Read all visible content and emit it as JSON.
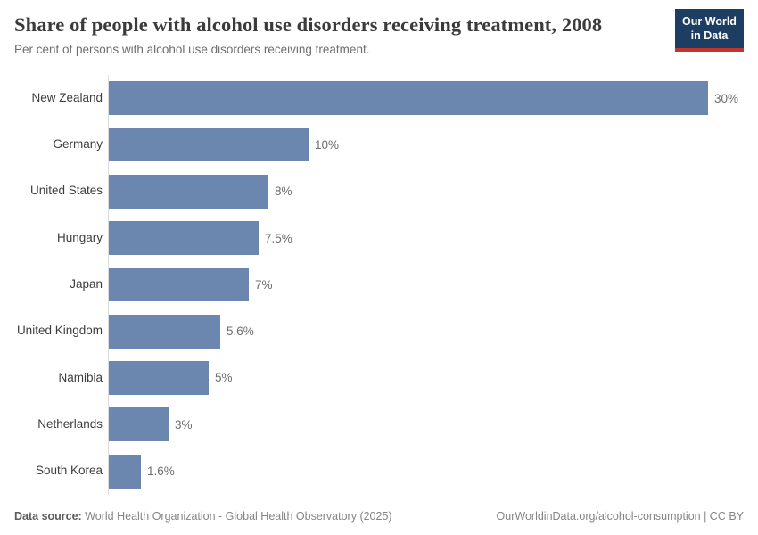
{
  "header": {
    "title": "Share of people with alcohol use disorders receiving treatment, 2008",
    "subtitle": "Per cent of persons with alcohol use disorders receiving treatment.",
    "logo": {
      "line1": "Our World",
      "line2": "in Data"
    }
  },
  "chart_data": {
    "type": "bar",
    "orientation": "horizontal",
    "title": "Share of people with alcohol use disorders receiving treatment, 2008",
    "unit": "%",
    "categories": [
      "New Zealand",
      "Germany",
      "United States",
      "Hungary",
      "Japan",
      "United Kingdom",
      "Namibia",
      "Netherlands",
      "South Korea"
    ],
    "values": [
      30,
      10,
      8,
      7.5,
      7,
      5.6,
      5,
      3,
      1.6
    ],
    "value_labels": [
      "30%",
      "10%",
      "8%",
      "7.5%",
      "7%",
      "5.6%",
      "5%",
      "3%",
      "1.6%"
    ],
    "xlim": [
      0,
      30
    ],
    "grid": false,
    "legend": "none"
  },
  "colors": {
    "bar": "#6c87af",
    "axis_line": "#dcdcdc",
    "logo_navy": "#1d3d63",
    "logo_red": "#c5342b"
  },
  "footer": {
    "source_label": "Data source:",
    "source_text": " World Health Organization - Global Health Observatory (2025)",
    "credit": "OurWorldinData.org/alcohol-consumption | CC BY"
  }
}
